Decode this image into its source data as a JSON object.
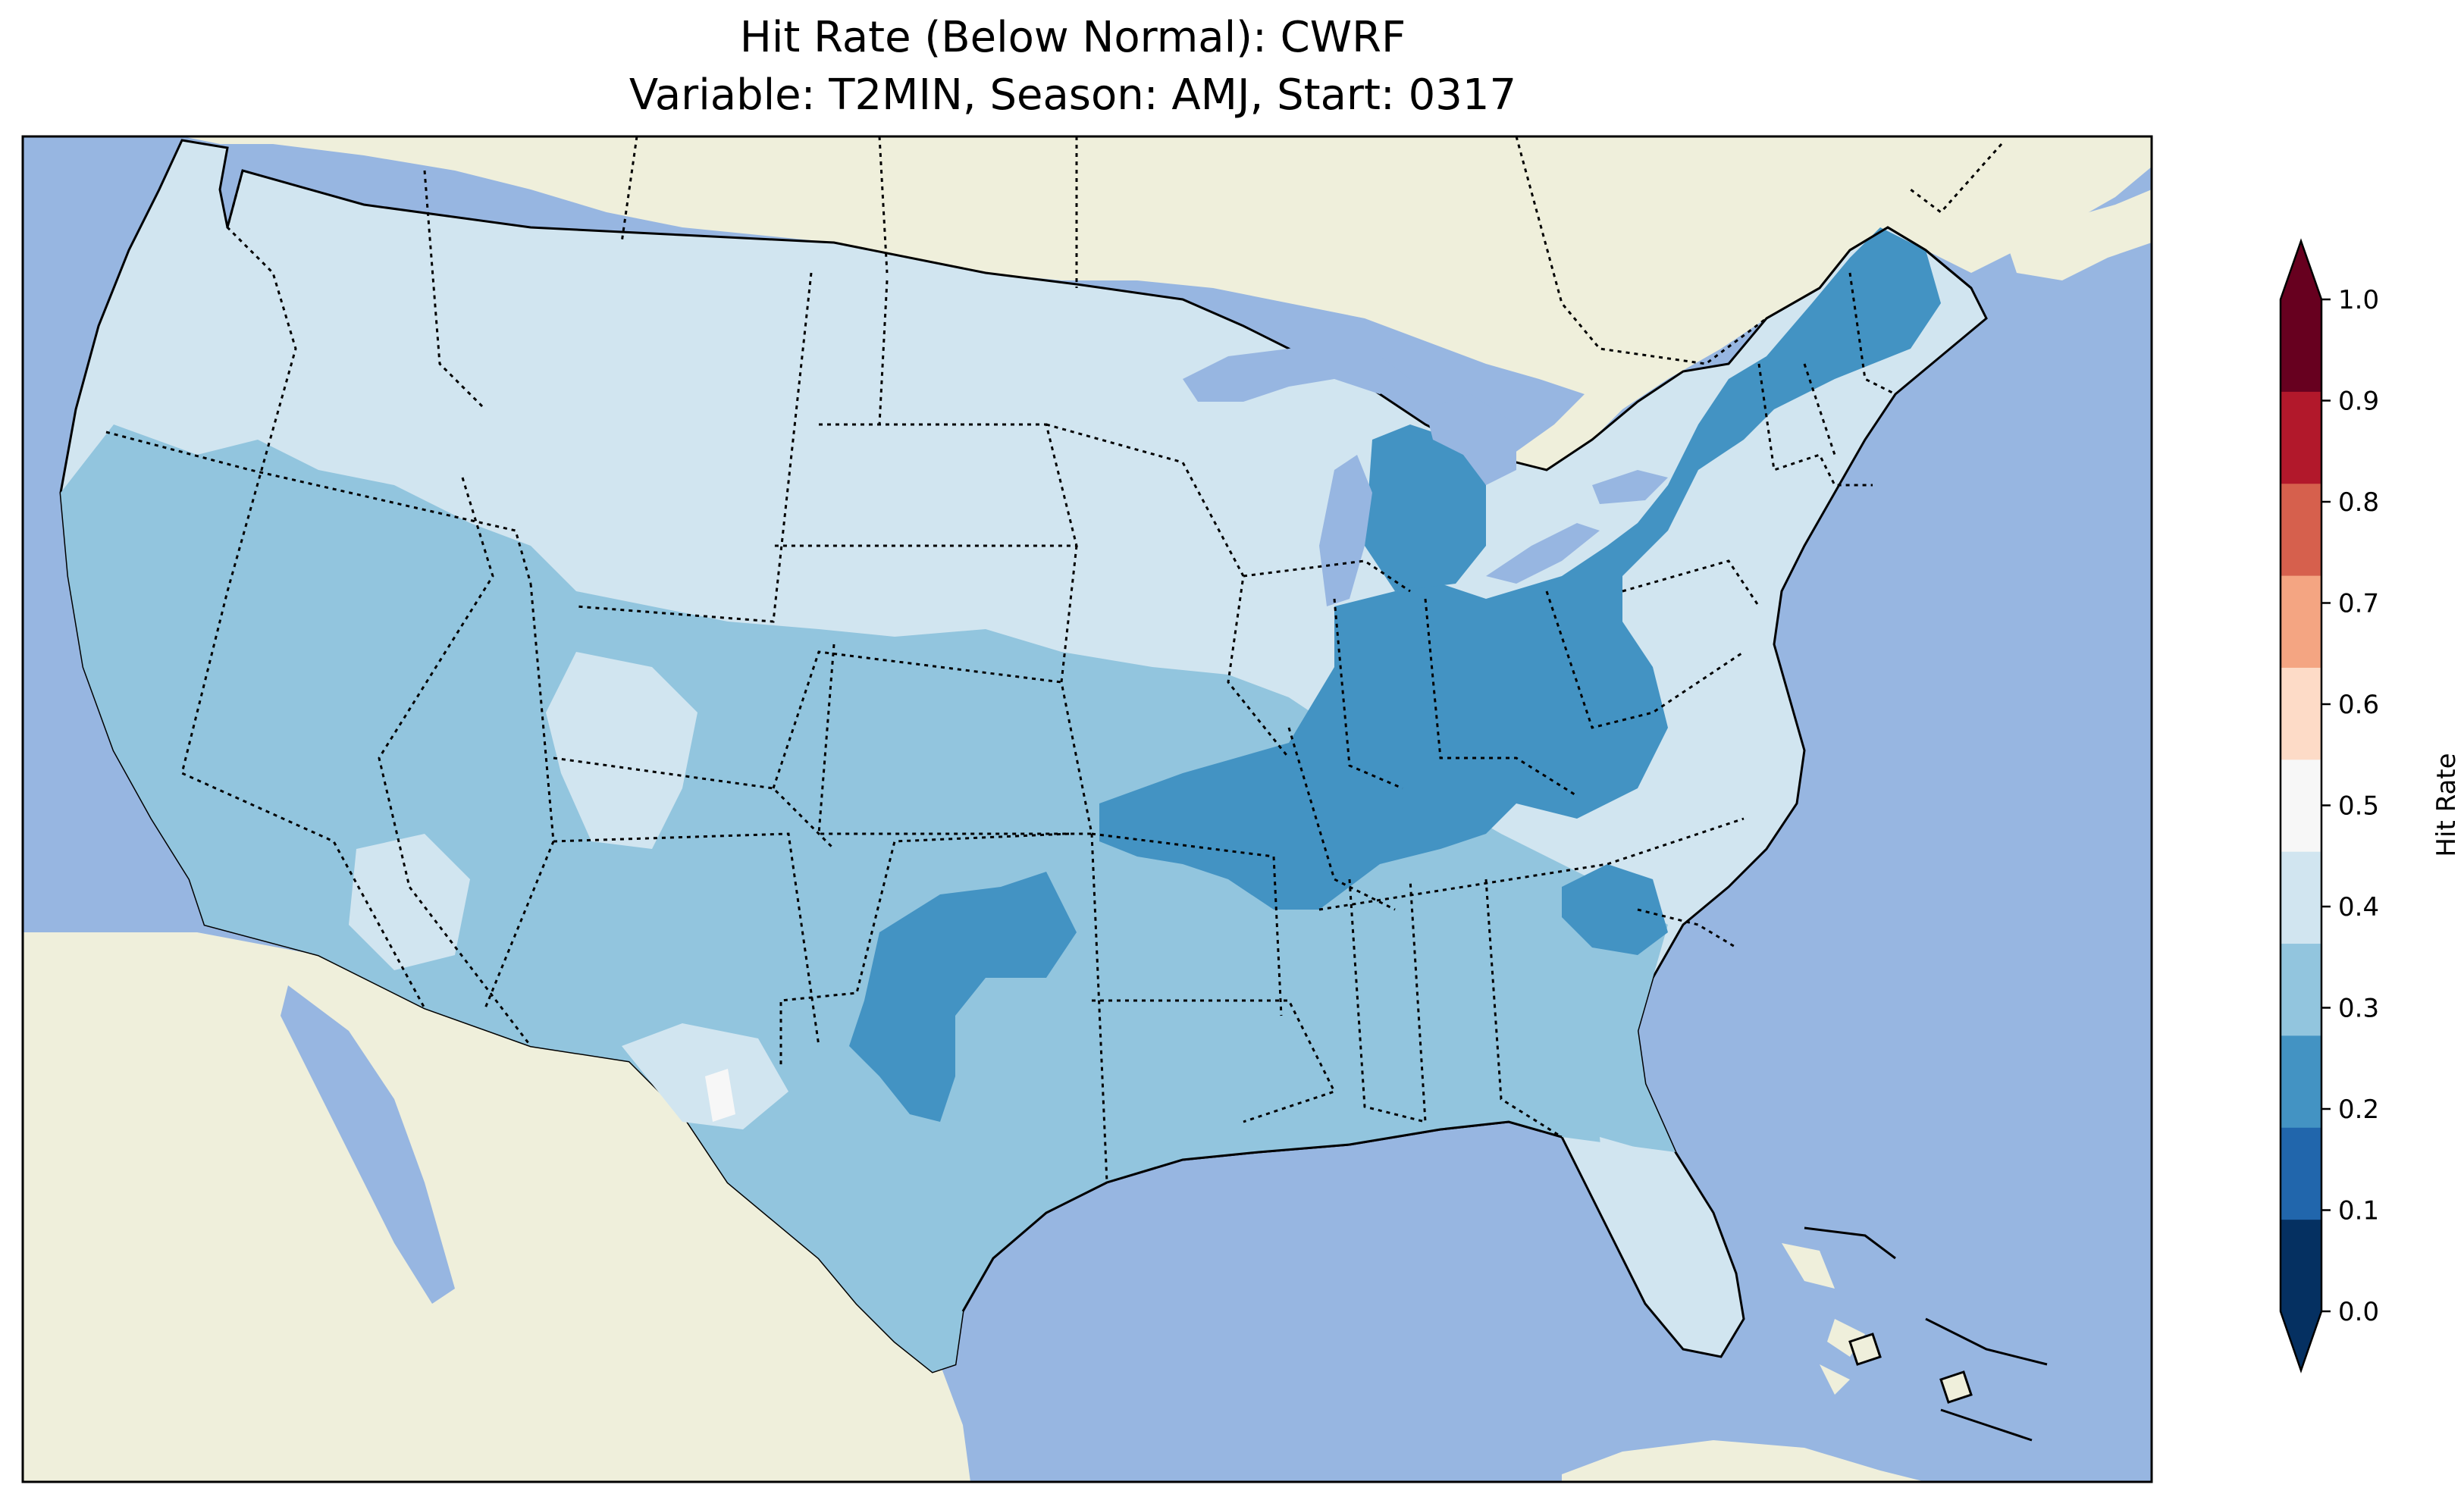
{
  "figure": {
    "title_line1": "Hit Rate (Below Normal): CWRF",
    "title_line2": "Variable: T2MIN, Season: AMJ, Start: 0317"
  },
  "map": {
    "ocean_color": "#97b6e1",
    "land_color": "#efefdb",
    "border_color": "#000000"
  },
  "colorbar": {
    "label": "Hit Rate",
    "ticks": [
      "0.0",
      "0.1",
      "0.2",
      "0.3",
      "0.4",
      "0.5",
      "0.6",
      "0.7",
      "0.8",
      "0.9",
      "1.0"
    ],
    "colors": [
      "#053061",
      "#2166ac",
      "#4393c3",
      "#92c5de",
      "#d1e5f0",
      "#f7f7f7",
      "#fddbc7",
      "#f4a582",
      "#d6604d",
      "#b2182b",
      "#67001f"
    ],
    "under_color": "#053061",
    "over_color": "#67001f"
  }
}
